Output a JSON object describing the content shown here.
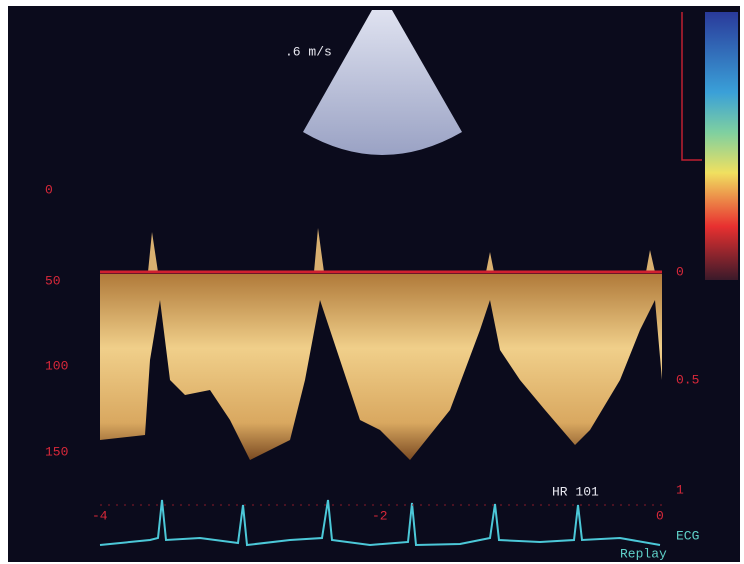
{
  "header": {
    "velocity": ".6 m/s"
  },
  "depth_scale": {
    "labels": [
      "0",
      "50",
      "100",
      "150"
    ]
  },
  "velocity_scale": {
    "labels": [
      "0",
      "0.5",
      "1"
    ]
  },
  "time_scale": {
    "labels": [
      "-4",
      "-2",
      "0"
    ]
  },
  "ecg": {
    "heart_rate": "HR 101",
    "label": "ECG",
    "mode": "Replay"
  }
}
